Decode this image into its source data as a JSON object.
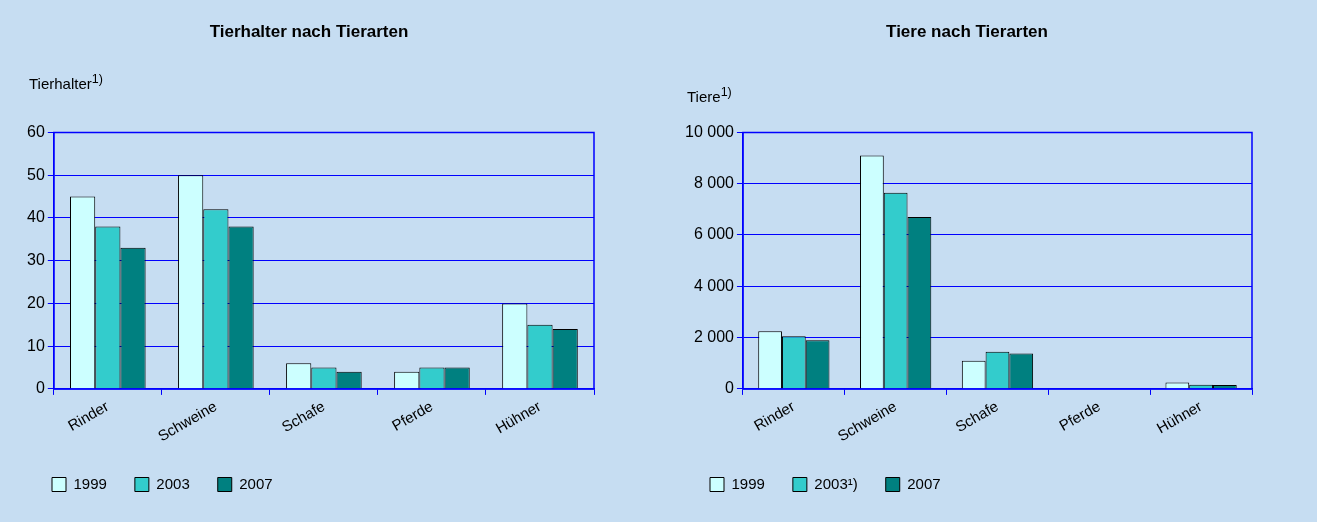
{
  "chart_data": [
    {
      "type": "bar",
      "title": "Tierhalter nach Tierarten",
      "ylabel": "Tierhalter$^{1)}$",
      "categories": [
        "Rinder",
        "Schweine",
        "Schafe",
        "Pferde",
        "Hühner"
      ],
      "series": [
        {
          "name": "1999",
          "color": "#ccffff",
          "values": [
            45,
            50,
            6,
            4,
            20
          ]
        },
        {
          "name": "2003",
          "color": "#33cccc",
          "values": [
            38,
            42,
            5,
            5,
            15
          ]
        },
        {
          "name": "2007",
          "color": "#008080",
          "values": [
            33,
            38,
            4,
            5,
            14
          ]
        }
      ],
      "ylim": [
        0,
        60
      ],
      "yticks": [
        0,
        10,
        20,
        30,
        40,
        50,
        60
      ],
      "grid": "y",
      "legend": "bottom left"
    },
    {
      "type": "bar",
      "title": "Tiere nach Tierarten",
      "ylabel": "Tiere$^{1)}$",
      "categories": [
        "Rinder",
        "Schweine",
        "Schafe",
        "Pferde",
        "Hühner"
      ],
      "series": [
        {
          "name": "1999",
          "color": "#ccffff",
          "values": [
            2250,
            9100,
            1100,
            null,
            250
          ]
        },
        {
          "name": "2003¹)",
          "color": "#33cccc",
          "values": [
            2050,
            7650,
            1450,
            null,
            160
          ]
        },
        {
          "name": "2007",
          "color": "#008080",
          "values": [
            1900,
            6700,
            1380,
            null,
            150
          ]
        }
      ],
      "ylim": [
        0,
        10000
      ],
      "yticks": [
        0,
        {
          "value": 2000,
          "label": "2 000"
        },
        {
          "value": 4000,
          "label": "4 000"
        },
        {
          "value": 6000,
          "label": "6 000"
        },
        {
          "value": 8000,
          "label": "8 000"
        },
        {
          "value": 10000,
          "label": "10 000"
        }
      ],
      "grid": "y",
      "legend": "bottom left"
    }
  ]
}
